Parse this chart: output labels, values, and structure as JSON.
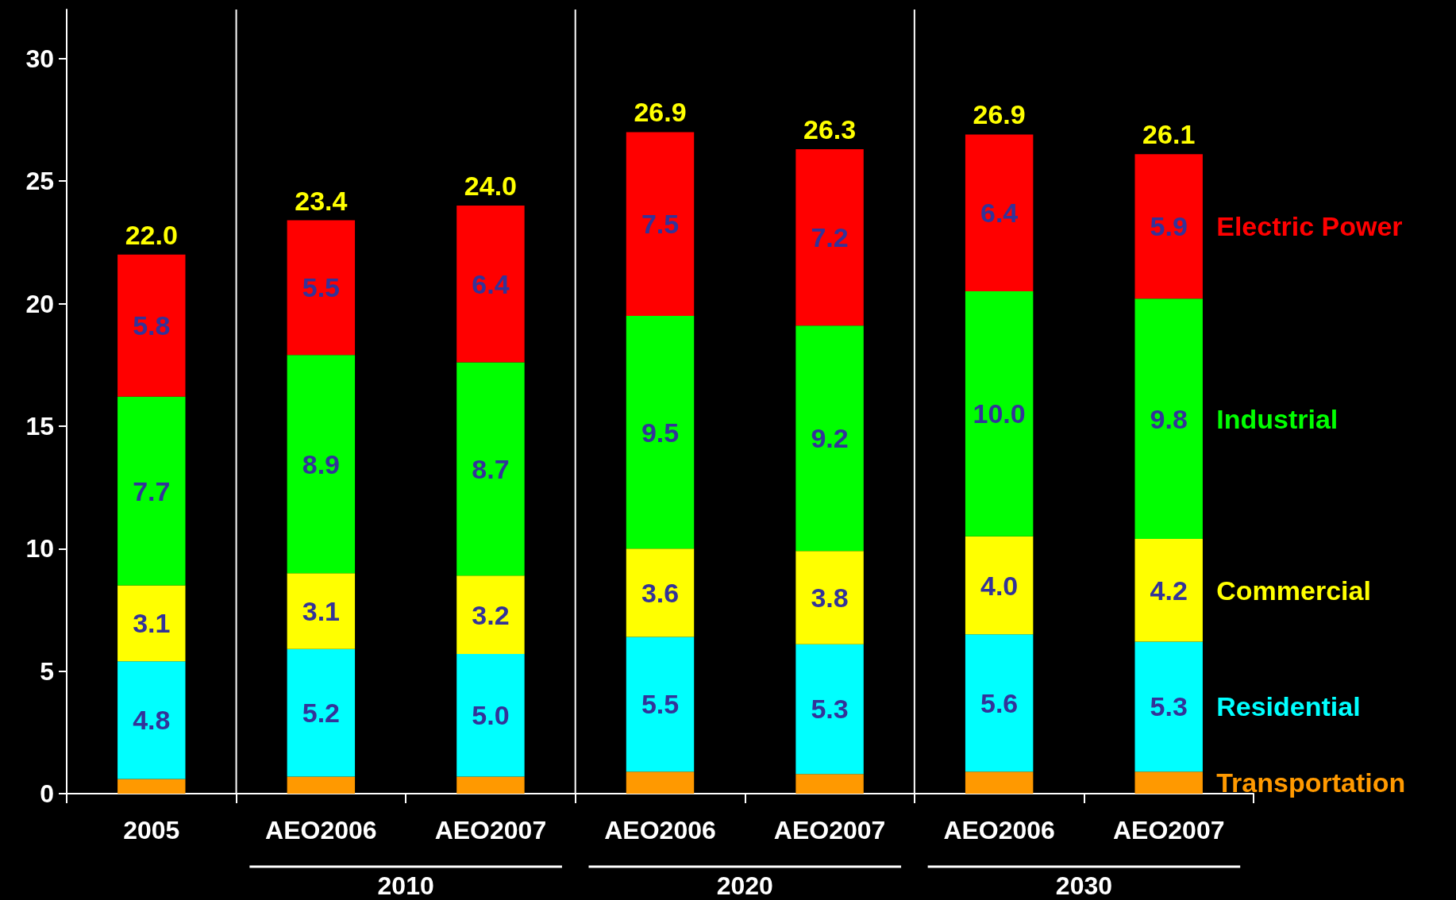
{
  "chart_data": {
    "type": "bar",
    "stacked": true,
    "categories": [
      "2005",
      "AEO2006",
      "AEO2007",
      "AEO2006",
      "AEO2007",
      "AEO2006",
      "AEO2007"
    ],
    "series": [
      {
        "name": "Transportation",
        "color": "#ff9900",
        "values": [
          0.6,
          0.7,
          0.7,
          0.9,
          0.8,
          0.9,
          0.9
        ]
      },
      {
        "name": "Residential",
        "color": "#00ffff",
        "values": [
          4.8,
          5.2,
          5.0,
          5.5,
          5.3,
          5.6,
          5.3
        ],
        "value_labels": [
          "4.8",
          "5.2",
          "5.0",
          "5.5",
          "5.3",
          "5.6",
          "5.3"
        ]
      },
      {
        "name": "Commercial",
        "color": "#ffff00",
        "values": [
          3.1,
          3.1,
          3.2,
          3.6,
          3.8,
          4.0,
          4.2
        ],
        "value_labels": [
          "3.1",
          "3.1",
          "3.2",
          "3.6",
          "3.8",
          "4.0",
          "4.2"
        ]
      },
      {
        "name": "Industrial",
        "color": "#00ff00",
        "values": [
          7.7,
          8.9,
          8.7,
          9.5,
          9.2,
          10.0,
          9.8
        ],
        "value_labels": [
          "7.7",
          "8.9",
          "8.7",
          "9.5",
          "9.2",
          "10.0",
          "9.8"
        ]
      },
      {
        "name": "Electric Power",
        "color": "#ff0000",
        "values": [
          5.8,
          5.5,
          6.4,
          7.5,
          7.2,
          6.4,
          5.9
        ],
        "value_labels": [
          "5.8",
          "5.5",
          "6.4",
          "7.5",
          "7.2",
          "6.4",
          "5.9"
        ]
      }
    ],
    "totals": [
      "22.0",
      "23.4",
      "24.0",
      "26.9",
      "26.3",
      "26.9",
      "26.1"
    ],
    "annotations": [
      "2010",
      "2020",
      "2030"
    ],
    "ylim": [
      0,
      32
    ],
    "yticks": [
      0,
      5,
      10,
      15,
      20,
      25,
      30
    ],
    "grid": false,
    "legend": false
  }
}
